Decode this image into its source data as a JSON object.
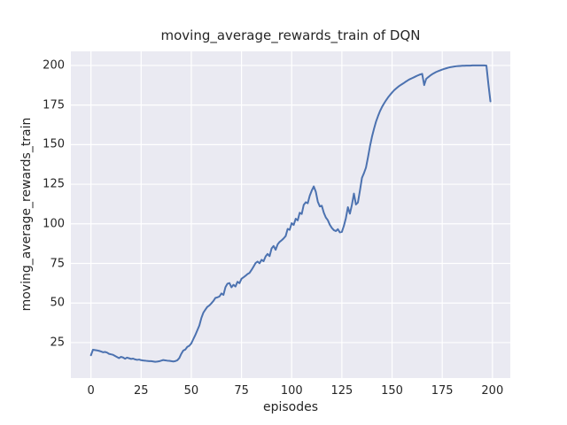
{
  "chart_data": {
    "type": "line",
    "title": "moving_average_rewards_train of DQN",
    "xlabel": "episodes",
    "ylabel": "moving_average_rewards_train",
    "series_name": "moving average reward (train)",
    "xlim": [
      -10,
      208.9
    ],
    "ylim": [
      2.6,
      208.9
    ],
    "xticks": [
      0,
      25,
      50,
      75,
      100,
      125,
      150,
      175,
      200
    ],
    "yticks": [
      25,
      50,
      75,
      100,
      125,
      150,
      175,
      200
    ],
    "grid": true,
    "legend_position": "none",
    "style": {
      "line_color": "#4c72b0",
      "line_width": 2,
      "plot_bg": "#eaeaf2",
      "grid_color": "#ffffff",
      "text_color": "#262626",
      "figure_bg": "#ffffff"
    },
    "x": [
      0,
      1,
      2,
      3,
      4,
      5,
      6,
      7,
      8,
      9,
      10,
      11,
      12,
      13,
      14,
      15,
      16,
      17,
      18,
      19,
      20,
      21,
      22,
      23,
      24,
      25,
      26,
      27,
      28,
      29,
      30,
      31,
      32,
      33,
      34,
      35,
      36,
      37,
      38,
      39,
      40,
      41,
      42,
      43,
      44,
      45,
      46,
      47,
      48,
      49,
      50,
      51,
      52,
      53,
      54,
      55,
      56,
      57,
      58,
      59,
      60,
      61,
      62,
      63,
      64,
      65,
      66,
      67,
      68,
      69,
      70,
      71,
      72,
      73,
      74,
      75,
      76,
      77,
      78,
      79,
      80,
      81,
      82,
      83,
      84,
      85,
      86,
      87,
      88,
      89,
      90,
      91,
      92,
      93,
      94,
      95,
      96,
      97,
      98,
      99,
      100,
      101,
      102,
      103,
      104,
      105,
      106,
      107,
      108,
      109,
      110,
      111,
      112,
      113,
      114,
      115,
      116,
      117,
      118,
      119,
      120,
      121,
      122,
      123,
      124,
      125,
      126,
      127,
      128,
      129,
      130,
      131,
      132,
      133,
      134,
      135,
      136,
      137,
      138,
      139,
      140,
      141,
      142,
      143,
      144,
      145,
      146,
      147,
      148,
      149,
      150,
      151,
      152,
      153,
      154,
      155,
      156,
      157,
      158,
      159,
      160,
      161,
      162,
      163,
      164,
      165,
      166,
      167,
      168,
      169,
      170,
      171,
      172,
      173,
      174,
      175,
      176,
      177,
      178,
      179,
      180,
      181,
      182,
      183,
      184,
      185,
      186,
      187,
      188,
      189,
      190,
      191,
      192,
      193,
      194,
      195,
      196,
      197,
      198,
      199
    ],
    "y": [
      17,
      20.5,
      20.3,
      20.1,
      19.8,
      19.4,
      18.9,
      19.1,
      18.7,
      17.9,
      17.6,
      17.3,
      16.6,
      15.9,
      15.2,
      16,
      15.6,
      14.8,
      15.5,
      15.1,
      14.7,
      14.9,
      14.4,
      14.1,
      14.3,
      13.9,
      13.7,
      13.6,
      13.4,
      13.3,
      13.3,
      13.1,
      12.9,
      13,
      13.2,
      13.6,
      14,
      13.8,
      13.6,
      13.5,
      13.3,
      13.1,
      13.3,
      13.8,
      15.2,
      17.9,
      20,
      20.6,
      22.3,
      23,
      24.5,
      27.2,
      29.8,
      32.8,
      35.8,
      40.5,
      43.9,
      45.8,
      47.6,
      48.5,
      49.8,
      51.3,
      53.2,
      53.6,
      54.1,
      56,
      55.1,
      60,
      62.2,
      62.6,
      59.9,
      61.5,
      60.4,
      63.4,
      62.5,
      65.3,
      66.2,
      67.2,
      68.3,
      69,
      70.9,
      73,
      75.2,
      76.2,
      75.1,
      77.3,
      76.4,
      79.4,
      81,
      79.6,
      84.5,
      86,
      83.6,
      87,
      88.6,
      89.6,
      90.8,
      92.3,
      96.8,
      96.2,
      100.4,
      99.3,
      103.2,
      102.2,
      107,
      106.2,
      112,
      113.6,
      113,
      117.8,
      121,
      123.6,
      120.3,
      114,
      111,
      111.4,
      107,
      104,
      102.3,
      99.4,
      97.4,
      96,
      95.4,
      96.6,
      94.6,
      94.9,
      98.7,
      103.6,
      110.5,
      106.4,
      112,
      119.1,
      112.2,
      113.5,
      121,
      129,
      132,
      135.5,
      142,
      149,
      155,
      160,
      164.5,
      168,
      171.2,
      173.8,
      176,
      178,
      179.8,
      181.4,
      182.9,
      184.3,
      185.4,
      186.5,
      187.4,
      188.2,
      189,
      189.9,
      190.7,
      191.4,
      192,
      192.6,
      193.2,
      193.8,
      194.3,
      194.7,
      187.6,
      191.5,
      192.6,
      193.6,
      194.5,
      195.2,
      195.9,
      196.4,
      196.9,
      197.4,
      197.8,
      198.2,
      198.6,
      198.9,
      199.1,
      199.3,
      199.5,
      199.6,
      199.7,
      199.8,
      199.8,
      199.9,
      199.9,
      199.9,
      200,
      200,
      200,
      200,
      200,
      200,
      200,
      199.9,
      188,
      177.3
    ]
  }
}
